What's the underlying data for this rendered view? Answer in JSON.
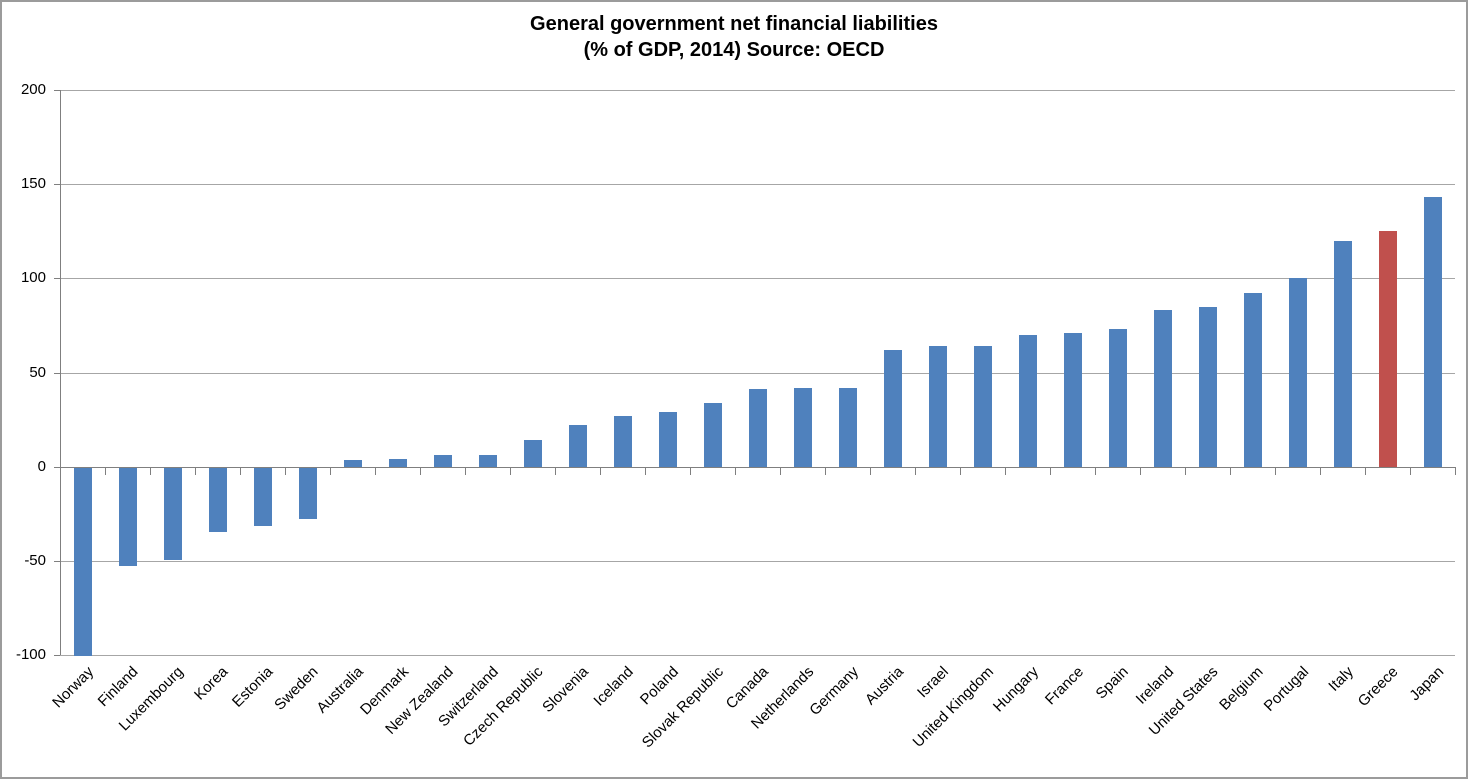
{
  "title": {
    "line1": "General government net financial liabilities",
    "line2": "(% of GDP, 2014) Source: OECD"
  },
  "chart_data": {
    "type": "bar",
    "title": "General government net financial liabilities",
    "subtitle": "(% of GDP, 2014) Source: OECD",
    "categories": [
      "Norway",
      "Finland",
      "Luxembourg",
      "Korea",
      "Estonia",
      "Sweden",
      "Australia",
      "Denmark",
      "New Zealand",
      "Switzerland",
      "Czech Republic",
      "Slovenia",
      "Iceland",
      "Poland",
      "Slovak Republic",
      "Canada",
      "Netherlands",
      "Germany",
      "Austria",
      "Israel",
      "United Kingdom",
      "Hungary",
      "France",
      "Spain",
      "Ireland",
      "United States",
      "Belgium",
      "Portugal",
      "Italy",
      "Greece",
      "Japan"
    ],
    "values": [
      -100,
      -52,
      -49,
      -34,
      -31,
      -27,
      3.5,
      4,
      6,
      6,
      14,
      22,
      27,
      29,
      34,
      41,
      42,
      42,
      62,
      64,
      64,
      70,
      71,
      73,
      83,
      85,
      92,
      100,
      120,
      125,
      143
    ],
    "highlight_category": "Greece",
    "xlabel": "",
    "ylabel": "",
    "ylim": [
      -100,
      200
    ],
    "yticks": [
      -100,
      -50,
      0,
      50,
      100,
      150,
      200
    ],
    "grid": true,
    "legend": "none",
    "colors": {
      "bar": "#4F81BD",
      "highlight": "#C0504D",
      "gridline": "#A6A6A6",
      "axis": "#7F7F7F",
      "text": "#000000"
    }
  }
}
